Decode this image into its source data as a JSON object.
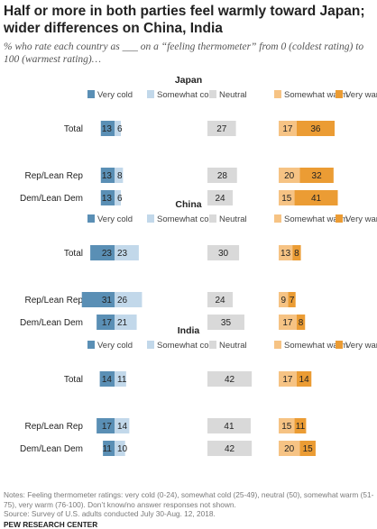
{
  "title": "Half or more in both parties feel warmly toward Japan; wider differences on China, India",
  "subtitle": "% who rate each country as ___ on a “feeling thermometer” from 0 (coldest rating) to 100 (warmest rating)…",
  "notes": "Notes: Feeling thermometer ratings: very cold (0-24), somewhat cold (25-49), neutral (50), somewhat warm (51-75), very warm (76-100). Don’t know/no answer responses not shown.",
  "source": "Source: Survey of U.S. adults conducted July 30-Aug. 12, 2018.",
  "brand": "PEW RESEARCH CENTER",
  "colors": {
    "very_cold": "#5a8fb5",
    "somewhat_cold": "#c2d8ea",
    "neutral": "#d9d9d9",
    "somewhat_warm": "#f6c384",
    "very_warm": "#eb9c34"
  },
  "chart_data": {
    "type": "bar",
    "orientation": "horizontal",
    "layout": "diverging",
    "categories_legend": [
      "Very cold",
      "Somewhat cold",
      "Neutral",
      "Somewhat warm",
      "Very warm"
    ],
    "panels": [
      {
        "country": "Japan",
        "rows": [
          {
            "label": "Total",
            "very_cold": 13,
            "somewhat_cold": 6,
            "neutral": 27,
            "somewhat_warm": 17,
            "very_warm": 36
          },
          {
            "label": "Rep/Lean Rep",
            "very_cold": 13,
            "somewhat_cold": 8,
            "neutral": 28,
            "somewhat_warm": 20,
            "very_warm": 32
          },
          {
            "label": "Dem/Lean Dem",
            "very_cold": 13,
            "somewhat_cold": 6,
            "neutral": 24,
            "somewhat_warm": 15,
            "very_warm": 41
          }
        ]
      },
      {
        "country": "China",
        "rows": [
          {
            "label": "Total",
            "very_cold": 23,
            "somewhat_cold": 23,
            "neutral": 30,
            "somewhat_warm": 13,
            "very_warm": 8
          },
          {
            "label": "Rep/Lean Rep",
            "very_cold": 31,
            "somewhat_cold": 26,
            "neutral": 24,
            "somewhat_warm": 9,
            "very_warm": 7
          },
          {
            "label": "Dem/Lean Dem",
            "very_cold": 17,
            "somewhat_cold": 21,
            "neutral": 35,
            "somewhat_warm": 17,
            "very_warm": 8
          }
        ]
      },
      {
        "country": "India",
        "rows": [
          {
            "label": "Total",
            "very_cold": 14,
            "somewhat_cold": 11,
            "neutral": 42,
            "somewhat_warm": 17,
            "very_warm": 14
          },
          {
            "label": "Rep/Lean Rep",
            "very_cold": 17,
            "somewhat_cold": 14,
            "neutral": 41,
            "somewhat_warm": 15,
            "very_warm": 11
          },
          {
            "label": "Dem/Lean Dem",
            "very_cold": 11,
            "somewhat_cold": 10,
            "neutral": 42,
            "somewhat_warm": 20,
            "very_warm": 15
          }
        ]
      }
    ]
  }
}
